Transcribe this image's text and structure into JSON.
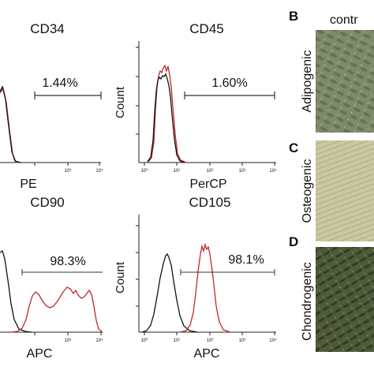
{
  "panels": [
    {
      "title": "CD34",
      "xlabel": "PE",
      "ylabel": "",
      "gate_percent": "1.44%",
      "tick_labels": [
        "10³",
        "10⁴"
      ],
      "curves": "control-overlay-low"
    },
    {
      "title": "CD45",
      "xlabel": "PerCP",
      "ylabel": "Count",
      "gate_percent": "1.60%",
      "tick_labels": [
        "10⁰",
        "10¹",
        "10²",
        "10³",
        "10⁴"
      ],
      "curves": "control-overlay-low"
    },
    {
      "title": "CD90",
      "xlabel": "APC",
      "ylabel": "",
      "gate_percent": "98.3%",
      "tick_labels": [
        "10³",
        "10⁴"
      ],
      "curves": "shifted-bimodal"
    },
    {
      "title": "CD105",
      "xlabel": "APC",
      "ylabel": "Count",
      "gate_percent": "98.1%",
      "tick_labels": [
        "10⁰",
        "10¹",
        "10²",
        "10³",
        "10⁴"
      ],
      "curves": "shifted-unimodal"
    }
  ],
  "right_section": {
    "panel_letters": [
      "B",
      "C",
      "D"
    ],
    "column_header": "contr",
    "row_labels": [
      "Adipogenic",
      "Osteogenic",
      "Chondrogenic"
    ]
  },
  "colors": {
    "control_curve": "#111111",
    "marker_curve": "#c0282d",
    "gate_line": "#333333",
    "adipogenic_photo": "#7f8a6a",
    "osteogenic_photo": "#c9c8a0",
    "chondrogenic_photo": "#4e5a3a"
  }
}
